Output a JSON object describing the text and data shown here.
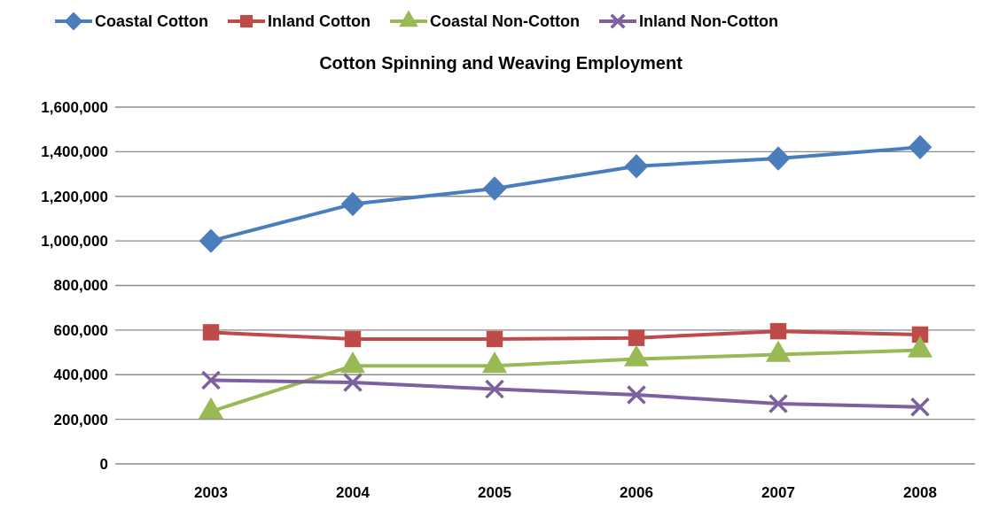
{
  "chart_data": {
    "type": "line",
    "title": "Cotton Spinning and Weaving Employment",
    "categories": [
      "2003",
      "2004",
      "2005",
      "2006",
      "2007",
      "2008"
    ],
    "series": [
      {
        "name": "Coastal Cotton",
        "color": "#4a7ebb",
        "marker": "diamond",
        "values": [
          1000000,
          1165000,
          1235000,
          1335000,
          1370000,
          1420000
        ]
      },
      {
        "name": "Inland Cotton",
        "color": "#be4b48",
        "marker": "square",
        "values": [
          590000,
          560000,
          560000,
          565000,
          595000,
          580000
        ]
      },
      {
        "name": "Coastal Non-Cotton",
        "color": "#98b954",
        "marker": "triangle",
        "values": [
          235000,
          440000,
          440000,
          470000,
          490000,
          510000
        ]
      },
      {
        "name": "Inland Non-Cotton",
        "color": "#7d60a0",
        "marker": "cross",
        "values": [
          375000,
          365000,
          335000,
          310000,
          270000,
          255000
        ]
      }
    ],
    "ylim": [
      0,
      1600000
    ],
    "yticks": [
      0,
      {
        "value": 200000,
        "label": "200,000"
      },
      {
        "value": 400000,
        "label": "400,000"
      },
      {
        "value": 600000,
        "label": "600,000"
      },
      {
        "value": 800000,
        "label": "800,000"
      },
      {
        "value": 1000000,
        "label": "1,000,000"
      },
      {
        "value": 1200000,
        "label": "1,200,000"
      },
      {
        "value": 1400000,
        "label": "1,400,000"
      },
      {
        "value": 1600000,
        "label": "1,600,000"
      }
    ],
    "grid": "y",
    "legend": "top",
    "line_style": "solid"
  }
}
